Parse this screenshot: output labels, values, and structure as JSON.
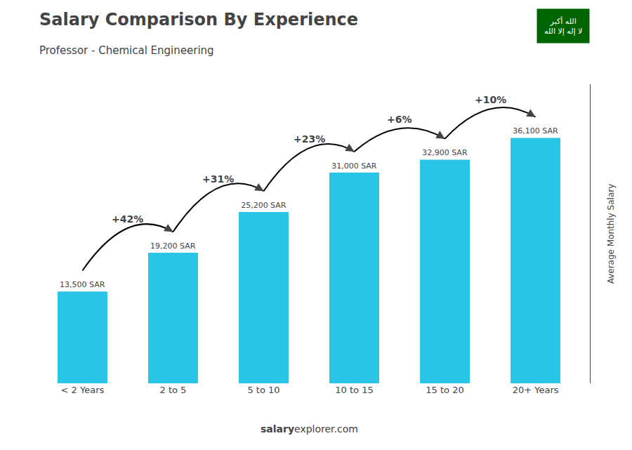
{
  "chart_data": {
    "type": "bar",
    "title": "Salary Comparison By Experience",
    "subtitle": "Professor - Chemical Engineering",
    "categories": [
      "< 2 Years",
      "2 to 5",
      "5 to 10",
      "10 to 15",
      "15 to 20",
      "20+ Years"
    ],
    "values": [
      13500,
      19200,
      25200,
      31000,
      32900,
      36100
    ],
    "value_labels": [
      "13,500 SAR",
      "19,200 SAR",
      "25,200 SAR",
      "31,000 SAR",
      "32,900 SAR",
      "36,100 SAR"
    ],
    "data_labels": true,
    "color": "#29c5e6",
    "ylabel": "Average Monthly Salary",
    "ylim": [
      0,
      44000
    ],
    "grid": false,
    "tick_labels": "x",
    "annotations": [
      {
        "text": "+42%",
        "from": "< 2 Years",
        "to": "2 to 5"
      },
      {
        "text": "+31%",
        "from": "2 to 5",
        "to": "5 to 10"
      },
      {
        "text": "+23%",
        "from": "5 to 10",
        "to": "10 to 15"
      },
      {
        "text": "+6%",
        "from": "10 to 15",
        "to": "15 to 20"
      },
      {
        "text": "+10%",
        "from": "15 to 20",
        "to": "20+ Years"
      }
    ],
    "footer": [
      "salary",
      "explorer.com"
    ],
    "flag": {
      "color": "#006400",
      "text_color": "#ffffff",
      "texts": [
        "الله أكبر",
        "لا إله إلا الله"
      ]
    }
  }
}
